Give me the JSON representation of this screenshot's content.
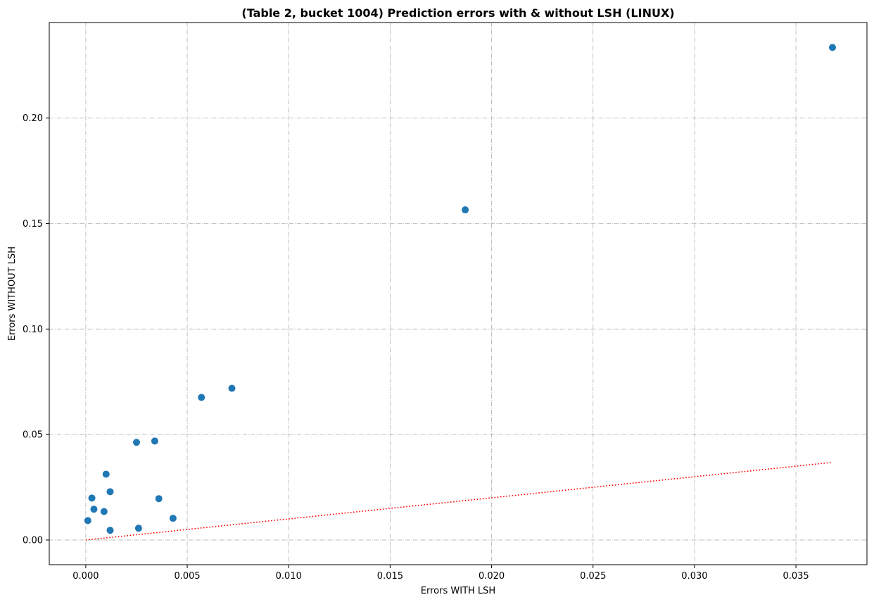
{
  "chart_data": {
    "type": "scatter",
    "title": "(Table 2, bucket 1004) Prediction errors with & without LSH (LINUX)",
    "xlabel": "Errors WITH LSH",
    "ylabel": "Errors WITHOUT LSH",
    "xlim": [
      -0.0018,
      0.0385
    ],
    "ylim": [
      -0.0117,
      0.2453
    ],
    "xticks": [
      0.0,
      0.005,
      0.01,
      0.015,
      0.02,
      0.025,
      0.03,
      0.035
    ],
    "xtick_labels": [
      "0.000",
      "0.005",
      "0.010",
      "0.015",
      "0.020",
      "0.025",
      "0.030",
      "0.035"
    ],
    "yticks": [
      0.0,
      0.05,
      0.1,
      0.15,
      0.2
    ],
    "ytick_labels": [
      "0.00",
      "0.05",
      "0.10",
      "0.15",
      "0.20"
    ],
    "grid": true,
    "point_color": "#1f77b4",
    "reference_line": {
      "style": "dotted",
      "color": "#ff0000",
      "x": [
        0.0,
        0.0368
      ],
      "y": [
        0.0,
        0.0368
      ]
    },
    "points": [
      {
        "x": 0.0368,
        "y": 0.2335
      },
      {
        "x": 0.0187,
        "y": 0.1565
      },
      {
        "x": 0.0072,
        "y": 0.0719
      },
      {
        "x": 0.0057,
        "y": 0.0676
      },
      {
        "x": 0.0034,
        "y": 0.0469
      },
      {
        "x": 0.0025,
        "y": 0.0463
      },
      {
        "x": 0.001,
        "y": 0.0312
      },
      {
        "x": 0.0012,
        "y": 0.0229
      },
      {
        "x": 0.0003,
        "y": 0.0199
      },
      {
        "x": 0.0036,
        "y": 0.0196
      },
      {
        "x": 0.0004,
        "y": 0.0146
      },
      {
        "x": 0.0009,
        "y": 0.0135
      },
      {
        "x": 0.0043,
        "y": 0.0103
      },
      {
        "x": 0.0001,
        "y": 0.0092
      },
      {
        "x": 0.0026,
        "y": 0.0056
      },
      {
        "x": 0.0012,
        "y": 0.0046
      }
    ]
  }
}
